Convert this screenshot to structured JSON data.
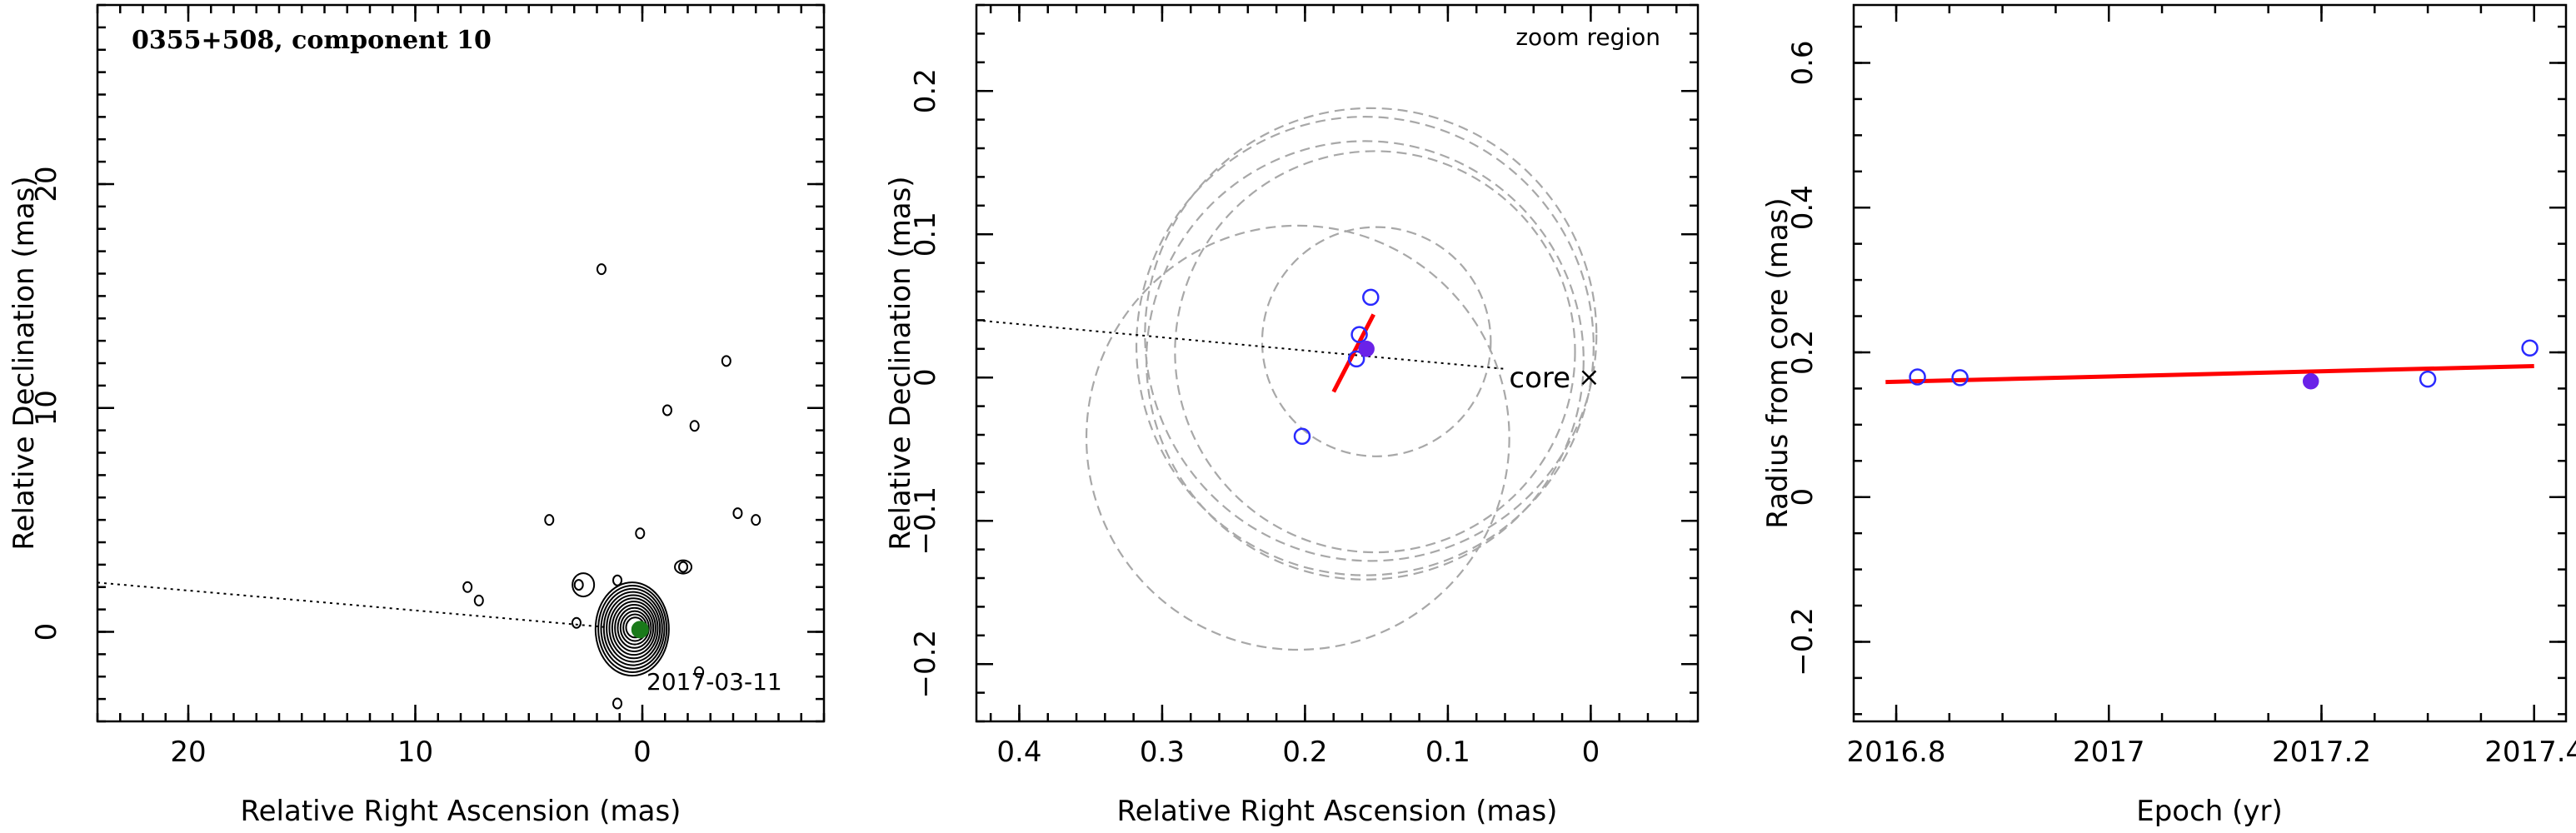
{
  "chart_data": [
    {
      "type": "contour",
      "title": "0355+508, component 10",
      "xlabel": "Relative Right Ascension (mas)",
      "ylabel": "Relative Declination (mas)",
      "xlim": [
        24,
        -8
      ],
      "ylim": [
        -4,
        28
      ],
      "xticks": [
        20,
        10,
        0
      ],
      "yticks": [
        0,
        10,
        20
      ],
      "annotation": "2017-03-11",
      "jet_line": {
        "x": [
          24,
          1.5
        ],
        "y": [
          2.2,
          0.2
        ]
      },
      "component": {
        "x": 0.1,
        "y": 0.1,
        "color": "#1a7a1a"
      },
      "core_contours": {
        "x": 0.3,
        "y": 0.2,
        "levels": 12
      },
      "small_contours": [
        {
          "x": 1.8,
          "y": 16.2
        },
        {
          "x": -3.7,
          "y": 12.1
        },
        {
          "x": -1.1,
          "y": 9.9
        },
        {
          "x": -2.3,
          "y": 9.2
        },
        {
          "x": 4.1,
          "y": 5.0
        },
        {
          "x": 0.1,
          "y": 4.4
        },
        {
          "x": -4.2,
          "y": 5.3
        },
        {
          "x": -5.0,
          "y": 5.0
        },
        {
          "x": 7.7,
          "y": 2.0
        },
        {
          "x": 7.2,
          "y": 1.4
        },
        {
          "x": 2.8,
          "y": 2.1
        },
        {
          "x": -1.8,
          "y": 2.9
        },
        {
          "x": 1.1,
          "y": 2.3
        },
        {
          "x": 1.1,
          "y": -3.2
        },
        {
          "x": -2.5,
          "y": -1.8
        },
        {
          "x": 2.9,
          "y": 0.4
        }
      ]
    },
    {
      "type": "scatter",
      "title": "",
      "annotation": "zoom region",
      "xlabel": "Relative Right Ascension (mas)",
      "ylabel": "Relative Declination (mas)",
      "xlim": [
        0.43,
        -0.075
      ],
      "ylim": [
        -0.24,
        0.26
      ],
      "xticks": [
        0.4,
        0.3,
        0.2,
        0.1,
        0
      ],
      "yticks": [
        -0.2,
        -0.1,
        0,
        0.1,
        0.2
      ],
      "core_label": "core",
      "core_position": {
        "x": 0,
        "y": 0
      },
      "jet_line": {
        "x": [
          0.43,
          0.06
        ],
        "y": [
          0.04,
          0.006
        ]
      },
      "points_open": [
        {
          "x": 0.154,
          "y": 0.056
        },
        {
          "x": 0.162,
          "y": 0.03
        },
        {
          "x": 0.164,
          "y": 0.013
        },
        {
          "x": 0.202,
          "y": -0.041
        }
      ],
      "point_filled": {
        "x": 0.157,
        "y": 0.02
      },
      "fit_segment": {
        "x": [
          0.18,
          0.152
        ],
        "y": [
          -0.01,
          0.044
        ]
      },
      "circles": [
        {
          "x": 0.158,
          "y": 0.022,
          "r": 0.16
        },
        {
          "x": 0.158,
          "y": 0.012,
          "r": 0.153
        },
        {
          "x": 0.154,
          "y": 0.03,
          "r": 0.158
        },
        {
          "x": 0.151,
          "y": 0.018,
          "r": 0.14
        },
        {
          "x": 0.15,
          "y": 0.025,
          "r": 0.08
        },
        {
          "x": 0.205,
          "y": -0.042,
          "r": 0.148
        }
      ]
    },
    {
      "type": "scatter",
      "title": "",
      "xlabel": "Epoch (yr)",
      "ylabel": "Radius from core (mas)",
      "xlim": [
        2016.76,
        2017.43
      ],
      "ylim": [
        -0.31,
        0.68
      ],
      "xticks": [
        2016.8,
        2017,
        2017.2,
        2017.4
      ],
      "yticks": [
        -0.2,
        0,
        0.2,
        0.4,
        0.6
      ],
      "x": [
        2016.82,
        2016.86,
        2017.19,
        2017.3,
        2017.396
      ],
      "y": [
        0.166,
        0.165,
        0.16,
        0.163,
        0.206
      ],
      "filled_index": 2,
      "fit": {
        "x": [
          2016.79,
          2017.4
        ],
        "y": [
          0.159,
          0.181
        ]
      }
    }
  ]
}
